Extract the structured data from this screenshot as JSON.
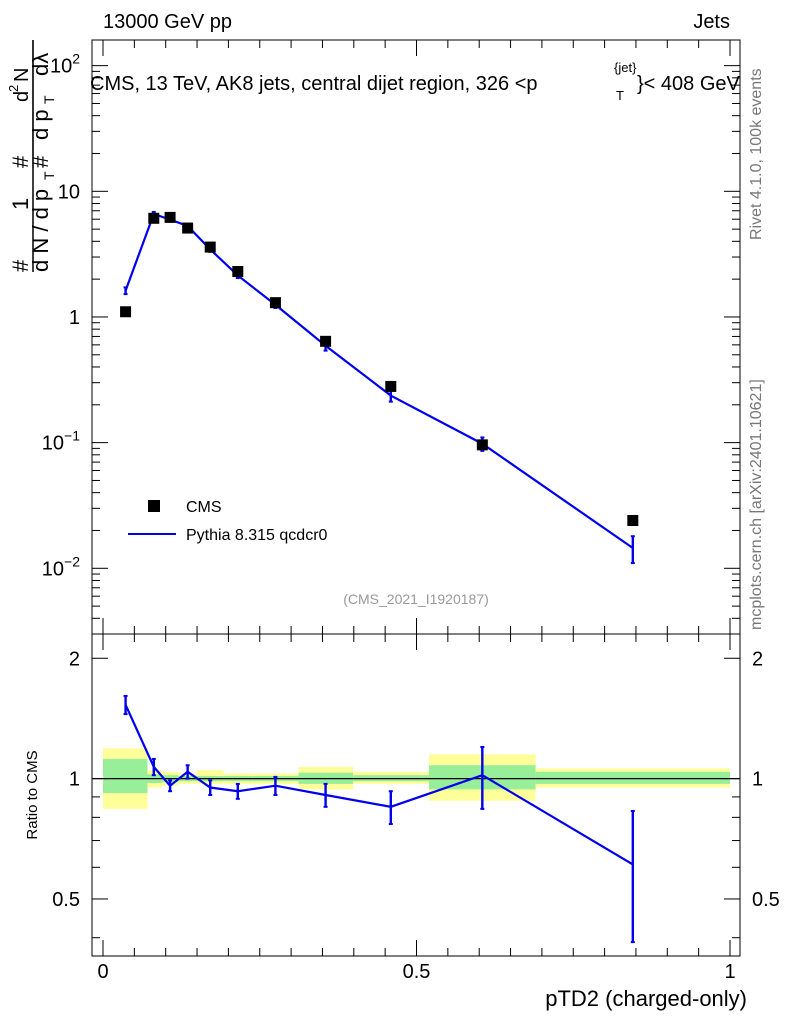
{
  "header": {
    "left": "13000 GeV pp",
    "right": "Jets"
  },
  "main_title": "CMS, 13 TeV, AK8 jets, central dijet region, 326 <p",
  "title_super": "{jet}",
  "title_sub": "T",
  "title_tail": "}< 408 GeV",
  "side": {
    "rivet": "Rivet 4.1.0,  100k events",
    "mcplots": "mcplots.cern.ch [arXiv:2401.10621]"
  },
  "analysis_tag": "(CMS_2021_I1920187)",
  "ylabel_top": {
    "hash1": "#",
    "one": "1",
    "dN": "d N / d p",
    "T1": "T",
    "hash2": "#",
    "d2N": "d",
    "sq": "2",
    "N": "N",
    "hash3": "#",
    "dpT": "d p",
    "T2": "T",
    "dlam": "dλ"
  },
  "ylabel_bottom": "Ratio to CMS",
  "xlabel": "pTD2 (charged-only)",
  "colors": {
    "mc": "#0000ee",
    "band_inner": "#99ee99",
    "band_outer": "#ffff99"
  },
  "chart_data": {
    "type": "scatter",
    "x_range": [
      0,
      1
    ],
    "y_range_top": [
      0.003,
      160
    ],
    "y_scale_top": "log",
    "y_range_bottom": [
      0.36,
      2.3
    ],
    "y_scale_bottom": "log",
    "top_ticks": [
      {
        "value": 0.01,
        "label": "10",
        "sup": "−2"
      },
      {
        "value": 0.1,
        "label": "10",
        "sup": "−1"
      },
      {
        "value": 1,
        "label": "1",
        "sup": ""
      },
      {
        "value": 10,
        "label": "10",
        "sup": ""
      },
      {
        "value": 100,
        "label": "10",
        "sup": "2"
      }
    ],
    "bottom_ticks": [
      {
        "value": 0.5,
        "label": "0.5"
      },
      {
        "value": 1,
        "label": "1"
      },
      {
        "value": 2,
        "label": "2"
      }
    ],
    "x_ticks": [
      {
        "value": 0,
        "label": "0"
      },
      {
        "value": 0.5,
        "label": "0.5"
      },
      {
        "value": 1,
        "label": "1"
      }
    ],
    "legend": {
      "data_label": "CMS",
      "mc_label": "Pythia 8.315 qcdcr0",
      "placement": "lower-left"
    },
    "data": {
      "name": "CMS",
      "x": [
        0.036,
        0.081,
        0.107,
        0.135,
        0.171,
        0.215,
        0.275,
        0.355,
        0.459,
        0.605,
        0.845
      ],
      "y": [
        1.1,
        6.1,
        6.2,
        5.1,
        3.6,
        2.3,
        1.3,
        0.64,
        0.28,
        0.096,
        0.024
      ]
    },
    "mc": {
      "name": "Pythia 8.315 qcdcr0",
      "x": [
        0.036,
        0.081,
        0.107,
        0.135,
        0.171,
        0.215,
        0.275,
        0.355,
        0.459,
        0.605,
        0.845
      ],
      "y": [
        1.62,
        6.6,
        5.95,
        5.3,
        3.45,
        2.14,
        1.25,
        0.59,
        0.237,
        0.098,
        0.0145
      ],
      "err": [
        0.1,
        0.25,
        0.2,
        0.2,
        0.15,
        0.1,
        0.07,
        0.05,
        0.025,
        0.012,
        0.0035
      ]
    },
    "ratio": {
      "x": [
        0.036,
        0.081,
        0.107,
        0.135,
        0.171,
        0.215,
        0.275,
        0.355,
        0.459,
        0.605,
        0.845
      ],
      "y": [
        1.53,
        1.07,
        0.96,
        1.04,
        0.95,
        0.93,
        0.96,
        0.91,
        0.85,
        1.02,
        0.61
      ],
      "err": [
        0.08,
        0.05,
        0.03,
        0.04,
        0.04,
        0.04,
        0.05,
        0.06,
        0.08,
        0.18,
        0.22
      ]
    },
    "bands": [
      {
        "x0": 0.0,
        "x1": 0.071,
        "inner": [
          0.92,
          1.12
        ],
        "outer": [
          0.84,
          1.19
        ]
      },
      {
        "x0": 0.071,
        "x1": 0.094,
        "inner": [
          0.975,
          1.025
        ],
        "outer": [
          0.95,
          1.05
        ]
      },
      {
        "x0": 0.094,
        "x1": 0.12,
        "inner": [
          0.98,
          1.02
        ],
        "outer": [
          0.96,
          1.04
        ]
      },
      {
        "x0": 0.12,
        "x1": 0.15,
        "inner": [
          0.985,
          1.015
        ],
        "outer": [
          0.97,
          1.03
        ]
      },
      {
        "x0": 0.15,
        "x1": 0.192,
        "inner": [
          0.985,
          1.015
        ],
        "outer": [
          0.97,
          1.05
        ]
      },
      {
        "x0": 0.192,
        "x1": 0.238,
        "inner": [
          0.985,
          1.015
        ],
        "outer": [
          0.97,
          1.03
        ]
      },
      {
        "x0": 0.238,
        "x1": 0.312,
        "inner": [
          0.985,
          1.015
        ],
        "outer": [
          0.97,
          1.03
        ]
      },
      {
        "x0": 0.312,
        "x1": 0.399,
        "inner": [
          0.97,
          1.035
        ],
        "outer": [
          0.94,
          1.07
        ]
      },
      {
        "x0": 0.399,
        "x1": 0.52,
        "inner": [
          0.985,
          1.02
        ],
        "outer": [
          0.97,
          1.04
        ]
      },
      {
        "x0": 0.52,
        "x1": 0.69,
        "inner": [
          0.94,
          1.08
        ],
        "outer": [
          0.88,
          1.15
        ]
      },
      {
        "x0": 0.69,
        "x1": 1.0,
        "inner": [
          0.97,
          1.04
        ],
        "outer": [
          0.95,
          1.06
        ]
      }
    ]
  }
}
